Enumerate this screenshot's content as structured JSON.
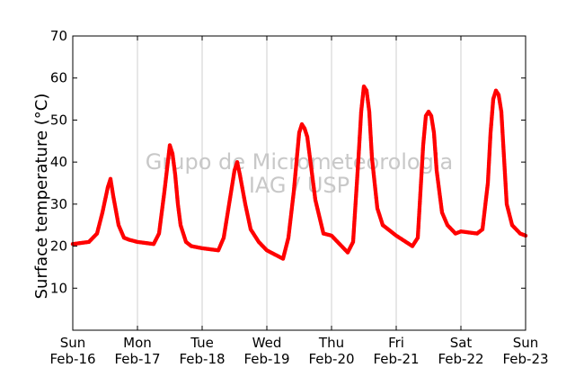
{
  "chart_data": {
    "type": "scatter",
    "title": "",
    "xlabel": "",
    "ylabel": "Surface temperature (°C)",
    "ylim": [
      0,
      70
    ],
    "yticks": [
      10,
      20,
      30,
      40,
      50,
      60,
      70
    ],
    "xlim": [
      "2014-02-16",
      "2014-02-23"
    ],
    "xticks": [
      {
        "day": "Sun",
        "date": "Feb-16"
      },
      {
        "day": "Mon",
        "date": "Feb-17"
      },
      {
        "day": "Tue",
        "date": "Feb-18"
      },
      {
        "day": "Wed",
        "date": "Feb-19"
      },
      {
        "day": "Thu",
        "date": "Feb-20"
      },
      {
        "day": "Fri",
        "date": "Feb-21"
      },
      {
        "day": "Sat",
        "date": "Feb-22"
      },
      {
        "day": "Sun",
        "date": "Feb-23"
      }
    ],
    "grid": "vertical",
    "marker_color": "#ff0000",
    "watermark": [
      "Grupo de Micrometeorologia",
      "IAG / USP"
    ],
    "series": [
      {
        "x": [
          "2014-02-16T00:00",
          "2014-02-16T06:00",
          "2014-02-16T09:00",
          "2014-02-16T11:00",
          "2014-02-16T13:00",
          "2014-02-16T14:00",
          "2014-02-16T15:00",
          "2014-02-16T17:00",
          "2014-02-16T19:00",
          "2014-02-16T21:00",
          "2014-02-17T00:00",
          "2014-02-17T06:00",
          "2014-02-17T08:00",
          "2014-02-17T10:00",
          "2014-02-17T12:00",
          "2014-02-17T13:00",
          "2014-02-17T14:00",
          "2014-02-17T15:00",
          "2014-02-17T16:00",
          "2014-02-17T18:00",
          "2014-02-17T20:00",
          "2014-02-18T00:00",
          "2014-02-18T06:00",
          "2014-02-18T08:00",
          "2014-02-18T10:00",
          "2014-02-18T12:00",
          "2014-02-18T13:00",
          "2014-02-18T14:00",
          "2014-02-18T16:00",
          "2014-02-18T18:00",
          "2014-02-18T21:00",
          "2014-02-19T00:00",
          "2014-02-19T06:00",
          "2014-02-19T08:00",
          "2014-02-19T10:00",
          "2014-02-19T12:00",
          "2014-02-19T13:00",
          "2014-02-19T14:00",
          "2014-02-19T15:00",
          "2014-02-19T16:00",
          "2014-02-19T18:00",
          "2014-02-19T21:00",
          "2014-02-20T00:00",
          "2014-02-20T06:00",
          "2014-02-20T08:00",
          "2014-02-20T10:00",
          "2014-02-20T11:00",
          "2014-02-20T12:00",
          "2014-02-20T13:00",
          "2014-02-20T14:00",
          "2014-02-20T15:00",
          "2014-02-20T17:00",
          "2014-02-20T19:00",
          "2014-02-20T22:00",
          "2014-02-21T00:00",
          "2014-02-21T06:00",
          "2014-02-21T08:00",
          "2014-02-21T10:00",
          "2014-02-21T11:00",
          "2014-02-21T12:00",
          "2014-02-21T13:00",
          "2014-02-21T14:00",
          "2014-02-21T15:00",
          "2014-02-21T17:00",
          "2014-02-21T19:00",
          "2014-02-21T22:00",
          "2014-02-22T00:00",
          "2014-02-22T06:00",
          "2014-02-22T08:00",
          "2014-02-22T10:00",
          "2014-02-22T11:00",
          "2014-02-22T12:00",
          "2014-02-22T13:00",
          "2014-02-22T14:00",
          "2014-02-22T15:00",
          "2014-02-22T17:00",
          "2014-02-22T19:00",
          "2014-02-22T22:00",
          "2014-02-23T00:00"
        ],
        "y": [
          20.5,
          21,
          23,
          28,
          34,
          36,
          32,
          25,
          22,
          21.5,
          21,
          20.5,
          23,
          33,
          44,
          42,
          37,
          30,
          25,
          21,
          20,
          19.5,
          19,
          22,
          30,
          38,
          40,
          37,
          30,
          24,
          21,
          19,
          17,
          22,
          33,
          47,
          49,
          48,
          46,
          41,
          31,
          23,
          22.5,
          18.5,
          21,
          41,
          52,
          58,
          57,
          52,
          41,
          29,
          25,
          23.5,
          22.5,
          20,
          22,
          44,
          51,
          52,
          51,
          47,
          38,
          28,
          25,
          23,
          23.5,
          23,
          24,
          35,
          47,
          55,
          57,
          56,
          52,
          30,
          25,
          23,
          22.5
        ]
      }
    ]
  }
}
